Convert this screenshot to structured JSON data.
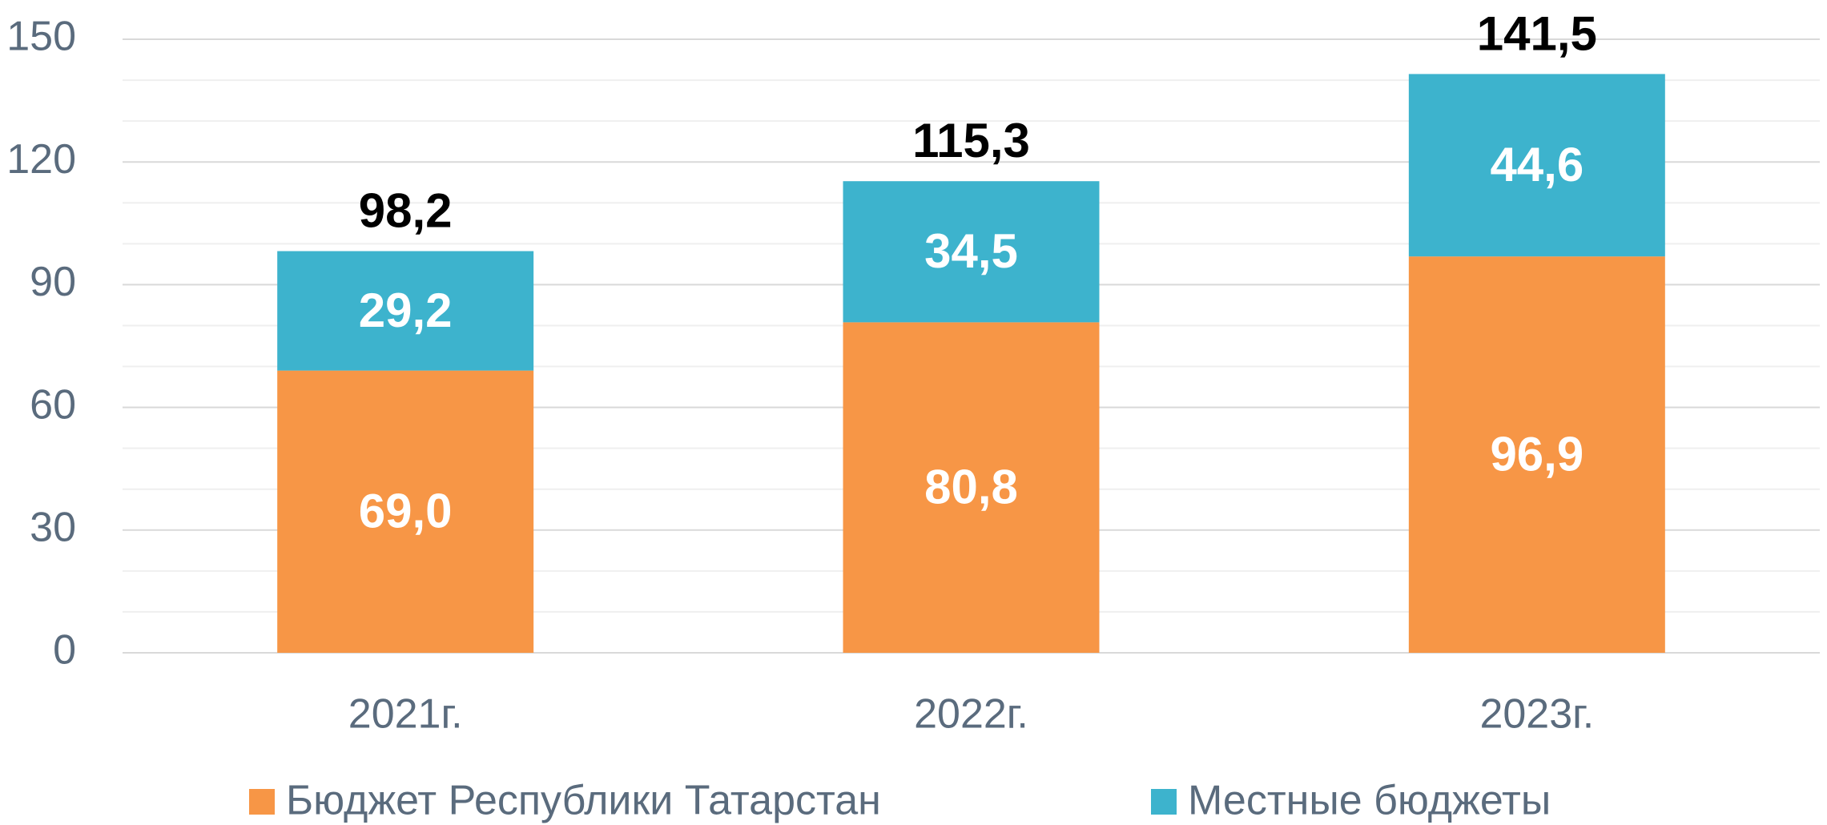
{
  "chart_data": {
    "type": "stacked_bar",
    "categories": [
      "2021г.",
      "2022г.",
      "2023г."
    ],
    "series": [
      {
        "name": "Бюджет Республики Татарстан",
        "color": "#f79646",
        "values": [
          69.0,
          80.8,
          96.9
        ],
        "value_labels": [
          "69,0",
          "80,8",
          "96,9"
        ]
      },
      {
        "name": "Местные бюджеты",
        "color": "#3db3cd",
        "values": [
          29.2,
          34.5,
          44.6
        ],
        "value_labels": [
          "29,2",
          "34,5",
          "44,6"
        ]
      }
    ],
    "totals": [
      98.2,
      115.3,
      141.5
    ],
    "total_labels": [
      "98,2",
      "115,3",
      "141,5"
    ],
    "ylim": [
      0,
      150
    ],
    "yticks": [
      0,
      30,
      60,
      90,
      120,
      150
    ],
    "minor_yticks": [
      10,
      20,
      40,
      50,
      70,
      80,
      100,
      110,
      130,
      140
    ],
    "grid": true,
    "legend": "bottom"
  }
}
